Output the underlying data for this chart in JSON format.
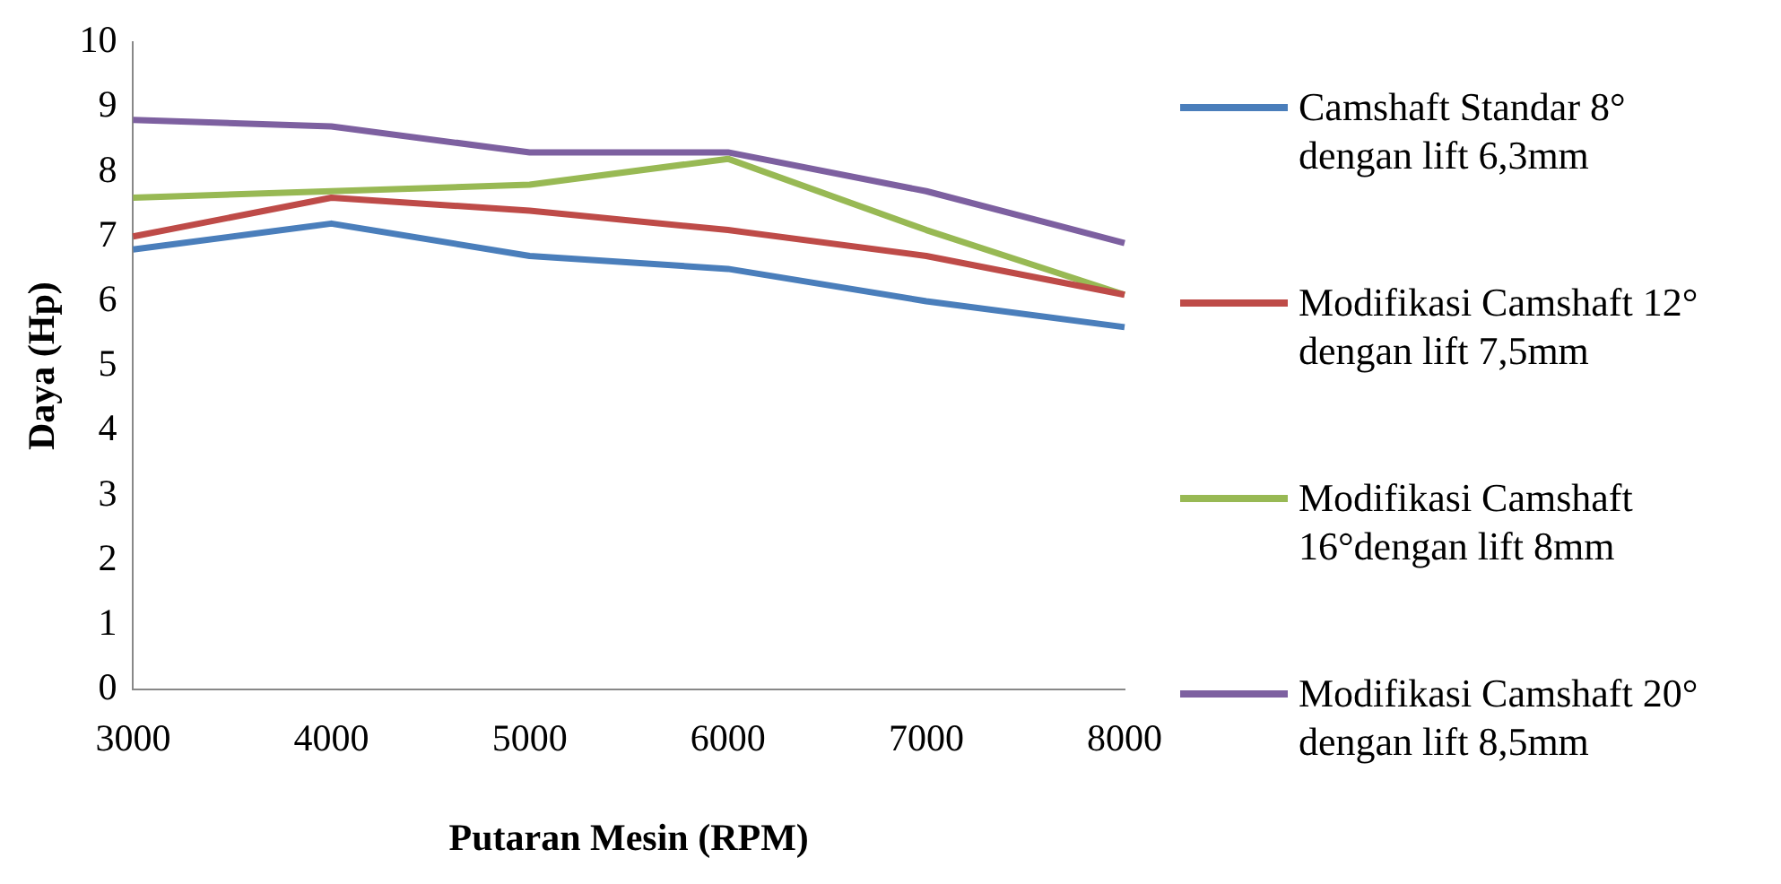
{
  "chart_data": {
    "type": "line",
    "xlabel": "Putaran Mesin (RPM)",
    "ylabel": "Daya (Hp)",
    "categories": [
      "3000",
      "4000",
      "5000",
      "6000",
      "7000",
      "8000"
    ],
    "ylim": [
      0,
      10
    ],
    "yticks": [
      0,
      1,
      2,
      3,
      4,
      5,
      6,
      7,
      8,
      9,
      10
    ],
    "grid": false,
    "legend": "right",
    "marker": "none",
    "line_style": "solid",
    "series": [
      {
        "name": "Camshaft Standar 8° dengan lift 6,3mm",
        "color": "#4a7ebb",
        "values": [
          6.8,
          7.2,
          6.7,
          6.5,
          6.0,
          5.6
        ]
      },
      {
        "name": "Modifikasi Camshaft 12° dengan lift 7,5mm",
        "color": "#be4b48",
        "values": [
          7.0,
          7.6,
          7.4,
          7.1,
          6.7,
          6.1
        ]
      },
      {
        "name": "Modifikasi Camshaft 16°dengan lift 8mm",
        "color": "#98b954",
        "values": [
          7.6,
          7.7,
          7.8,
          8.2,
          7.1,
          6.1
        ]
      },
      {
        "name": "Modifikasi Camshaft 20° dengan lift 8,5mm",
        "color": "#7d60a0",
        "values": [
          8.8,
          8.7,
          8.3,
          8.3,
          7.7,
          6.9
        ]
      }
    ]
  }
}
